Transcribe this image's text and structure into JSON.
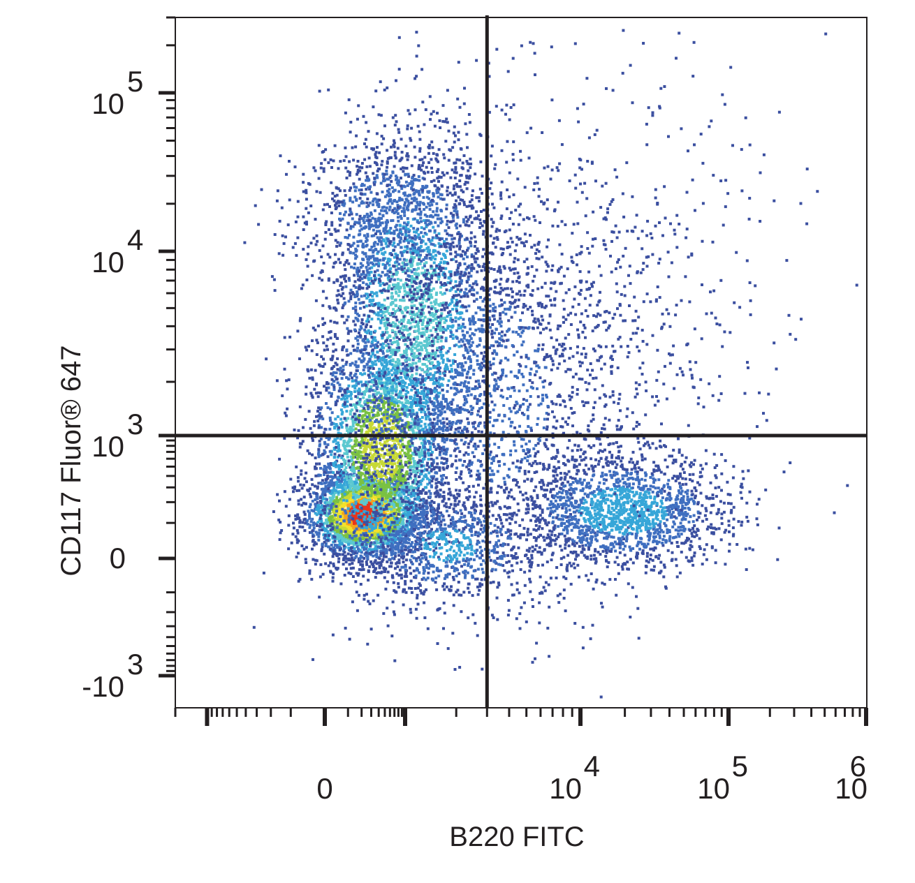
{
  "chart_data": {
    "type": "scatter",
    "title": "",
    "xlabel": "B220 FITC",
    "ylabel": "CD117 Fluor® 647",
    "x_scale": "biexponential",
    "y_scale": "biexponential",
    "xlim": [
      -2000,
      1000000
    ],
    "ylim": [
      -1500,
      300000
    ],
    "x_ticks": [
      {
        "value": 0,
        "base": "0",
        "exp": ""
      },
      {
        "value": 10000,
        "base": "10",
        "exp": "4"
      },
      {
        "value": 100000,
        "base": "10",
        "exp": "5"
      },
      {
        "value": 1000000,
        "base": "10",
        "exp": "6"
      }
    ],
    "y_ticks": [
      {
        "value": 100000,
        "base": "10",
        "exp": "5"
      },
      {
        "value": 10000,
        "base": "10",
        "exp": "4"
      },
      {
        "value": 1000,
        "base": "10",
        "exp": "3"
      },
      {
        "value": 0,
        "base": "0",
        "exp": ""
      },
      {
        "value": -1000,
        "base": "-10",
        "exp": "3"
      }
    ],
    "gates": {
      "quadrant_x": 3000,
      "quadrant_y": 1000
    },
    "populations": [
      {
        "name": "",
        "x_center": 250,
        "y_center": 200,
        "density": "high"
      },
      {
        "name": "",
        "x_center": 900,
        "y_center": 2500,
        "density": "medium"
      },
      {
        "name": "",
        "x_center": 20000,
        "y_center": 250,
        "density": "low"
      }
    ],
    "grid": false,
    "legend": "none",
    "colormap": [
      "#3b4fa0",
      "#3f6fc0",
      "#36a6d8",
      "#5bc8d0",
      "#7ac143",
      "#c7d936",
      "#f4e12a",
      "#f4a21e",
      "#e8341c"
    ]
  }
}
